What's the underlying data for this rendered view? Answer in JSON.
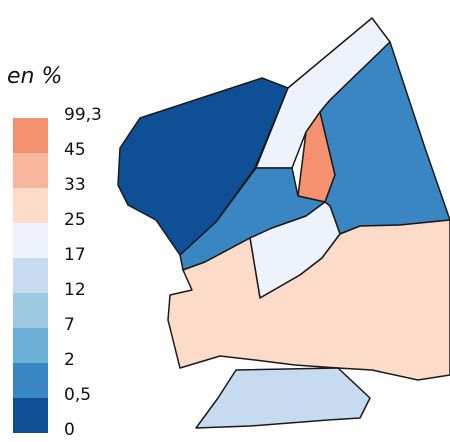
{
  "legend": {
    "title": "en %",
    "breaks": [
      "99,3",
      "45",
      "33",
      "25",
      "17",
      "12",
      "7",
      "2",
      "0,5",
      "0"
    ],
    "classes": [
      {
        "color": "#f4916e",
        "icon": "class-45-99"
      },
      {
        "color": "#f8b69c",
        "icon": "class-33-45"
      },
      {
        "color": "#fcdcc9",
        "icon": "class-25-33"
      },
      {
        "color": "#eef2fb",
        "icon": "class-17-25"
      },
      {
        "color": "#c6dbef",
        "icon": "class-12-17"
      },
      {
        "color": "#9ecae1",
        "icon": "class-7-12"
      },
      {
        "color": "#6baed6",
        "icon": "class-2-7"
      },
      {
        "color": "#3a86c2",
        "icon": "class-0.5-2"
      },
      {
        "color": "#0e4f95",
        "icon": "class-0-0.5"
      }
    ]
  },
  "map": {
    "stroke_color": "#1a1a1a",
    "regions": [
      {
        "name": "district-west",
        "class_index": 8
      },
      {
        "name": "district-river-strip",
        "class_index": 3
      },
      {
        "name": "district-highlight",
        "class_index": 0
      },
      {
        "name": "district-northeast",
        "class_index": 7
      },
      {
        "name": "district-center-left",
        "class_index": 7
      },
      {
        "name": "district-center-small",
        "class_index": 3
      },
      {
        "name": "district-south-large",
        "class_index": 2
      },
      {
        "name": "district-south-island",
        "class_index": 4
      }
    ]
  }
}
